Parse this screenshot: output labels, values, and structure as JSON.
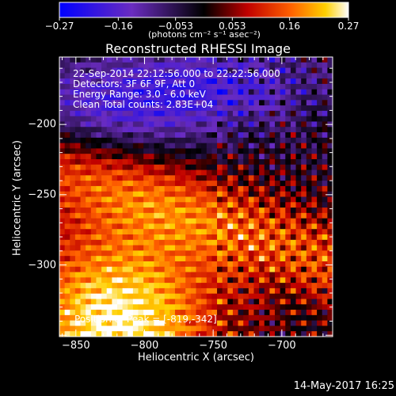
{
  "chart_data": {
    "type": "heatmap",
    "title": "Reconstructed RHESSI Image",
    "xlabel": "Heliocentric X (arcsec)",
    "ylabel": "Heliocentric Y (arcsec)",
    "xlim": [
      -862,
      -663
    ],
    "ylim": [
      -351,
      -152
    ],
    "x_ticks": [
      -850,
      -800,
      -750,
      -700
    ],
    "x_tick_labels": [
      "−850",
      "−800",
      "−750",
      "−700"
    ],
    "y_ticks": [
      -200,
      -250,
      -300
    ],
    "y_tick_labels": [
      "−200",
      "−250",
      "−300"
    ],
    "colorbar": {
      "range": [
        -0.27,
        0.27
      ],
      "ticks": [
        -0.27,
        -0.16,
        -0.053,
        0.053,
        0.16,
        0.27
      ],
      "tick_labels": [
        "−0.27",
        "−0.16",
        "−0.053",
        "0.053",
        "0.16",
        "0.27"
      ],
      "units": "(photons cm⁻² s⁻¹ asec⁻²)"
    },
    "annotations": [
      "22-Sep-2014 22:12:56.000 to 22:22:56.000",
      "Detectors: 3F 6F 9F, Att 0",
      "Energy Range: 3.0 - 6.0 keV",
      "Clean    Total counts: 2.83E+04"
    ],
    "peak_label": "Position of Peak = [-819,-342]",
    "peak": [
      -819,
      -342
    ],
    "peak_value": 0.27,
    "footer": "14-May-2017 16:25",
    "colormap": "blue-purple-red-yellow-white"
  }
}
